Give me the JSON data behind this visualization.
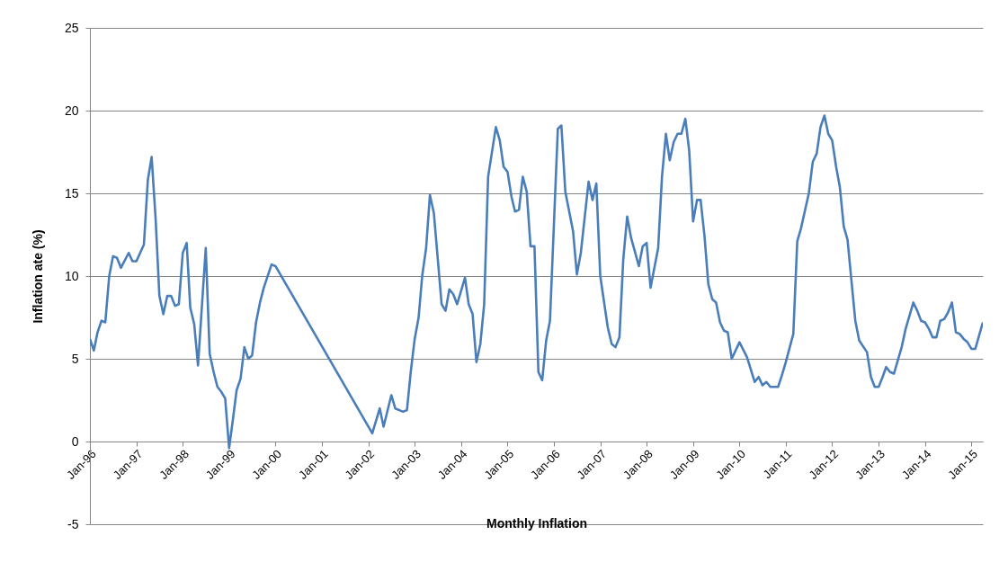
{
  "chart_data": {
    "type": "line",
    "xlabel": "Monthly Inflation",
    "ylabel": "Inflation ate (%)",
    "x": [
      "1996-01",
      "1996-02",
      "1996-03",
      "1996-04",
      "1996-05",
      "1996-06",
      "1996-07",
      "1996-08",
      "1996-09",
      "1996-11",
      "1996-12",
      "1997-01",
      "1997-03",
      "1997-04",
      "1997-05",
      "1997-06",
      "1997-07",
      "1997-08",
      "1997-09",
      "1997-10",
      "1997-11",
      "1997-12",
      "1998-01",
      "1998-02",
      "1998-03",
      "1998-04",
      "1998-05",
      "1998-07",
      "1998-08",
      "1998-09",
      "1998-10",
      "1998-11",
      "1998-12",
      "1999-01",
      "1999-02",
      "1999-03",
      "1999-04",
      "1999-05",
      "1999-06",
      "1999-07",
      "1999-08",
      "1999-09",
      "1999-10",
      "1999-12",
      "2000-01",
      "2002-02",
      "2002-04",
      "2002-05",
      "2002-07",
      "2002-08",
      "2002-10",
      "2002-11",
      "2002-12",
      "2003-01",
      "2003-02",
      "2003-03",
      "2003-04",
      "2003-05",
      "2003-06",
      "2003-07",
      "2003-08",
      "2003-09",
      "2003-10",
      "2003-11",
      "2003-12",
      "2004-02",
      "2004-03",
      "2004-04",
      "2004-05",
      "2004-06",
      "2004-07",
      "2004-08",
      "2004-10",
      "2004-11",
      "2004-12",
      "2005-01",
      "2005-02",
      "2005-03",
      "2005-04",
      "2005-05",
      "2005-06",
      "2005-07",
      "2005-08",
      "2005-09",
      "2005-10",
      "2005-11",
      "2005-12",
      "2006-01",
      "2006-02",
      "2006-03",
      "2006-04",
      "2006-06",
      "2006-07",
      "2006-08",
      "2006-10",
      "2006-11",
      "2006-12",
      "2007-01",
      "2007-03",
      "2007-04",
      "2007-05",
      "2007-06",
      "2007-07",
      "2007-08",
      "2007-09",
      "2007-11",
      "2007-12",
      "2008-01",
      "2008-02",
      "2008-04",
      "2008-05",
      "2008-06",
      "2008-07",
      "2008-08",
      "2008-09",
      "2008-10",
      "2008-11",
      "2008-12",
      "2009-01",
      "2009-02",
      "2009-03",
      "2009-04",
      "2009-05",
      "2009-06",
      "2009-07",
      "2009-08",
      "2009-09",
      "2009-10",
      "2009-11",
      "2010-01",
      "2010-03",
      "2010-05",
      "2010-06",
      "2010-07",
      "2010-08",
      "2010-09",
      "2010-11",
      "2010-12",
      "2011-01",
      "2011-03",
      "2011-04",
      "2011-05",
      "2011-07",
      "2011-08",
      "2011-09",
      "2011-10",
      "2011-11",
      "2011-12",
      "2012-01",
      "2012-02",
      "2012-03",
      "2012-04",
      "2012-05",
      "2012-06",
      "2012-07",
      "2012-08",
      "2012-10",
      "2012-11",
      "2012-12",
      "2013-01",
      "2013-02",
      "2013-03",
      "2013-04",
      "2013-05",
      "2013-07",
      "2013-08",
      "2013-10",
      "2013-11",
      "2013-12",
      "2014-01",
      "2014-02",
      "2014-03",
      "2014-04",
      "2014-05",
      "2014-06",
      "2014-07",
      "2014-08",
      "2014-09",
      "2014-10",
      "2014-11",
      "2014-12",
      "2015-01",
      "2015-02",
      "2015-04"
    ],
    "series": [
      {
        "color": "#4a7ebb",
        "values": [
          6.2,
          5.5,
          6.6,
          7.3,
          7.2,
          10.0,
          11.2,
          11.1,
          10.5,
          11.4,
          10.9,
          10.9,
          11.9,
          15.8,
          17.2,
          13.5,
          8.8,
          7.7,
          8.8,
          8.8,
          8.2,
          8.3,
          11.4,
          12.0,
          8.1,
          7.1,
          4.6,
          11.7,
          5.3,
          4.2,
          3.3,
          3.0,
          2.6,
          -0.4,
          1.4,
          3.1,
          3.8,
          5.7,
          5.0,
          5.2,
          7.2,
          8.4,
          9.3,
          10.7,
          10.6,
          0.5,
          2.0,
          0.9,
          2.8,
          2.0,
          1.8,
          1.9,
          4.2,
          6.2,
          7.5,
          10.0,
          11.7,
          14.9,
          13.8,
          11.1,
          8.3,
          7.9,
          9.2,
          8.9,
          8.3,
          9.9,
          8.3,
          7.7,
          4.8,
          5.9,
          8.3,
          16.0,
          19.0,
          18.2,
          16.6,
          16.3,
          14.8,
          13.9,
          14.0,
          16.0,
          15.1,
          11.8,
          11.8,
          4.2,
          3.7,
          6.1,
          7.3,
          13.1,
          18.9,
          19.1,
          15.1,
          12.7,
          10.1,
          11.4,
          15.7,
          14.6,
          15.6,
          10.0,
          6.9,
          5.9,
          5.7,
          6.3,
          11.0,
          13.6,
          12.3,
          10.6,
          11.8,
          12.0,
          9.3,
          11.7,
          16.0,
          18.6,
          17.0,
          18.1,
          18.6,
          18.6,
          19.5,
          17.6,
          13.3,
          14.6,
          14.6,
          12.4,
          9.5,
          8.6,
          8.4,
          7.2,
          6.7,
          6.6,
          5.0,
          6.0,
          5.1,
          3.6,
          3.9,
          3.4,
          3.6,
          3.3,
          3.3,
          4.0,
          4.8,
          6.5,
          12.1,
          12.9,
          15.0,
          16.9,
          17.4,
          19.0,
          19.7,
          18.6,
          18.2,
          16.6,
          15.4,
          13.0,
          12.2,
          9.7,
          7.3,
          6.1,
          5.4,
          3.9,
          3.3,
          3.3,
          3.9,
          4.5,
          4.2,
          4.1,
          5.7,
          6.8,
          8.4,
          7.9,
          7.3,
          7.2,
          6.8,
          6.3,
          6.3,
          7.3,
          7.4,
          7.8,
          8.4,
          6.6,
          6.5,
          6.2,
          6.0,
          5.6,
          5.6,
          7.2
        ]
      }
    ],
    "xlim": [
      "1996-01",
      "2015-04"
    ],
    "xticks": [
      {
        "value": "1996-01",
        "label": "Jan-96"
      },
      {
        "value": "1997-01",
        "label": "Jan-97"
      },
      {
        "value": "1998-01",
        "label": "Jan-98"
      },
      {
        "value": "1999-01",
        "label": "Jan-99"
      },
      {
        "value": "2000-01",
        "label": "Jan-00"
      },
      {
        "value": "2001-01",
        "label": "Jan-01"
      },
      {
        "value": "2002-01",
        "label": "Jan-02"
      },
      {
        "value": "2003-01",
        "label": "Jan-03"
      },
      {
        "value": "2004-01",
        "label": "Jan-04"
      },
      {
        "value": "2005-01",
        "label": "Jan-05"
      },
      {
        "value": "2006-01",
        "label": "Jan-06"
      },
      {
        "value": "2007-01",
        "label": "Jan-07"
      },
      {
        "value": "2008-01",
        "label": "Jan-08"
      },
      {
        "value": "2009-01",
        "label": "Jan-09"
      },
      {
        "value": "2010-01",
        "label": "Jan-10"
      },
      {
        "value": "2011-01",
        "label": "Jan-11"
      },
      {
        "value": "2012-01",
        "label": "Jan-12"
      },
      {
        "value": "2013-01",
        "label": "Jan-13"
      },
      {
        "value": "2014-01",
        "label": "Jan-14"
      },
      {
        "value": "2015-01",
        "label": "Jan-15"
      }
    ],
    "ylim": [
      -5,
      25
    ],
    "yticks": [
      -5,
      0,
      5,
      10,
      15,
      20,
      25
    ],
    "grid": "y"
  }
}
